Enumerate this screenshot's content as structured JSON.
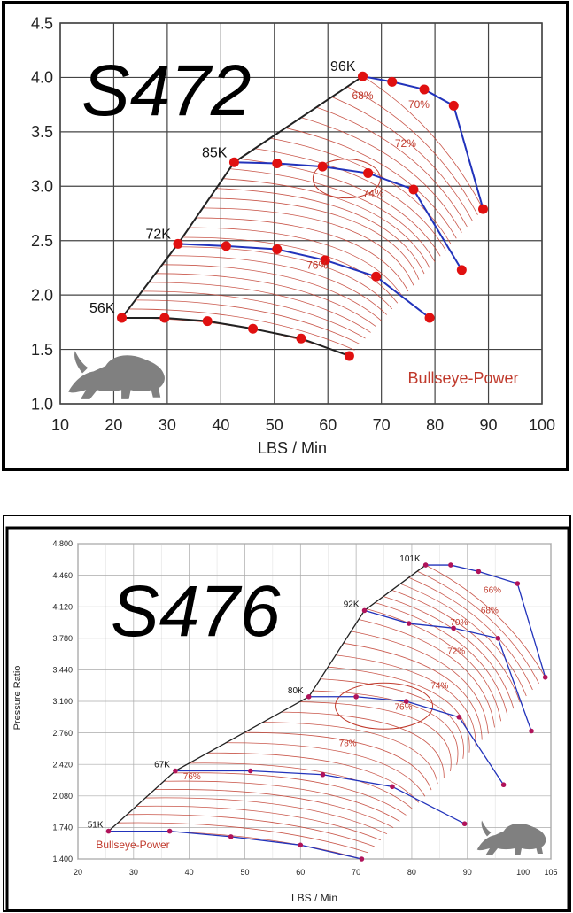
{
  "colors": {
    "surge": "#222222",
    "speedline": "#2233bb",
    "point": "#e01010",
    "efficiency": "#c0392b",
    "grid": "#444444",
    "grid_light": "#aaaaaa",
    "frame": "#000000",
    "logo": "#808080"
  },
  "chart_data": [
    {
      "type": "line",
      "title": "S472",
      "xlabel": "LBS / Min",
      "ylabel": "",
      "xlim": [
        10,
        100
      ],
      "ylim": [
        1.0,
        4.5
      ],
      "xticks": [
        "10",
        "20",
        "30",
        "40",
        "50",
        "60",
        "70",
        "80",
        "90",
        "100"
      ],
      "yticks": [
        "1.0",
        "1.5",
        "2.0",
        "2.5",
        "3.0",
        "3.5",
        "4.0",
        "4.5"
      ],
      "grid": true,
      "brand": "Bullseye-Power",
      "logo_icon": "bull-logo-icon",
      "surge_line": [
        [
          21.5,
          1.79
        ],
        [
          32,
          2.47
        ],
        [
          42.5,
          3.22
        ],
        [
          66.5,
          4.01
        ]
      ],
      "speed_lines": [
        {
          "name": "56K",
          "points": [
            [
              21.5,
              1.79
            ],
            [
              29.5,
              1.79
            ],
            [
              37.5,
              1.76
            ],
            [
              46,
              1.69
            ],
            [
              55,
              1.6
            ],
            [
              64,
              1.44
            ]
          ]
        },
        {
          "name": "72K",
          "points": [
            [
              32,
              2.47
            ],
            [
              41,
              2.45
            ],
            [
              50.5,
              2.42
            ],
            [
              59.5,
              2.32
            ],
            [
              69,
              2.17
            ],
            [
              79,
              1.79
            ]
          ]
        },
        {
          "name": "85K",
          "points": [
            [
              42.5,
              3.22
            ],
            [
              50.5,
              3.21
            ],
            [
              59,
              3.18
            ],
            [
              67.5,
              3.12
            ],
            [
              76,
              2.97
            ],
            [
              85,
              2.23
            ]
          ]
        },
        {
          "name": "96K",
          "points": [
            [
              66.5,
              4.01
            ],
            [
              72,
              3.96
            ],
            [
              78,
              3.89
            ],
            [
              83.5,
              3.74
            ],
            [
              89,
              2.79
            ]
          ]
        }
      ],
      "efficiency_labels": [
        {
          "text": "68%",
          "x": 66.5,
          "y": 3.8
        },
        {
          "text": "70%",
          "x": 77,
          "y": 3.72
        },
        {
          "text": "72%",
          "x": 74.5,
          "y": 3.36
        },
        {
          "text": "74%",
          "x": 68.5,
          "y": 2.9
        },
        {
          "text": "76%",
          "x": 58,
          "y": 2.24
        }
      ]
    },
    {
      "type": "line",
      "title": "S476",
      "xlabel": "LBS / Min",
      "ylabel": "Pressure Ratio",
      "xlim": [
        20,
        105
      ],
      "ylim": [
        1.4,
        4.8
      ],
      "xticks": [
        "20",
        "30",
        "40",
        "50",
        "60",
        "70",
        "80",
        "90",
        "100",
        "105"
      ],
      "yticks": [
        "1.400",
        "1.740",
        "2.080",
        "2.420",
        "2.760",
        "3.100",
        "3.440",
        "3.780",
        "4.120",
        "4.460",
        "4.800"
      ],
      "grid": true,
      "brand": "Bullseye-Power",
      "logo_icon": "bull-logo-icon",
      "surge_line": [
        [
          25.5,
          1.7
        ],
        [
          37.5,
          2.35
        ],
        [
          61.5,
          3.15
        ],
        [
          71.5,
          4.08
        ],
        [
          82.5,
          4.57
        ]
      ],
      "speed_lines": [
        {
          "name": "51K",
          "points": [
            [
              25.5,
              1.7
            ],
            [
              36.5,
              1.7
            ],
            [
              47.5,
              1.64
            ],
            [
              60,
              1.55
            ],
            [
              71,
              1.4
            ]
          ]
        },
        {
          "name": "67K",
          "points": [
            [
              37.5,
              2.35
            ],
            [
              51,
              2.35
            ],
            [
              64,
              2.31
            ],
            [
              76.5,
              2.18
            ],
            [
              89.5,
              1.78
            ]
          ]
        },
        {
          "name": "80K",
          "points": [
            [
              61.5,
              3.15
            ],
            [
              70,
              3.15
            ],
            [
              79,
              3.1
            ],
            [
              88.5,
              2.93
            ],
            [
              96.5,
              2.2
            ]
          ]
        },
        {
          "name": "92K",
          "points": [
            [
              71.5,
              4.08
            ],
            [
              79.5,
              3.94
            ],
            [
              87.5,
              3.89
            ],
            [
              95.5,
              3.78
            ],
            [
              101.5,
              2.78
            ]
          ]
        },
        {
          "name": "101K",
          "points": [
            [
              82.5,
              4.57
            ],
            [
              87,
              4.57
            ],
            [
              92,
              4.5
            ],
            [
              99,
              4.37
            ],
            [
              104,
              3.36
            ]
          ]
        }
      ],
      "efficiency_labels": [
        {
          "text": "66%",
          "x": 94.5,
          "y": 4.27
        },
        {
          "text": "68%",
          "x": 94,
          "y": 4.05
        },
        {
          "text": "70%",
          "x": 88.5,
          "y": 3.92
        },
        {
          "text": "72%",
          "x": 88,
          "y": 3.61
        },
        {
          "text": "74%",
          "x": 85,
          "y": 3.24
        },
        {
          "text": "76%",
          "x": 78.5,
          "y": 3.01
        },
        {
          "text": "78%",
          "x": 68.5,
          "y": 2.62
        },
        {
          "text": "76%",
          "x": 40.5,
          "y": 2.26
        }
      ]
    }
  ]
}
